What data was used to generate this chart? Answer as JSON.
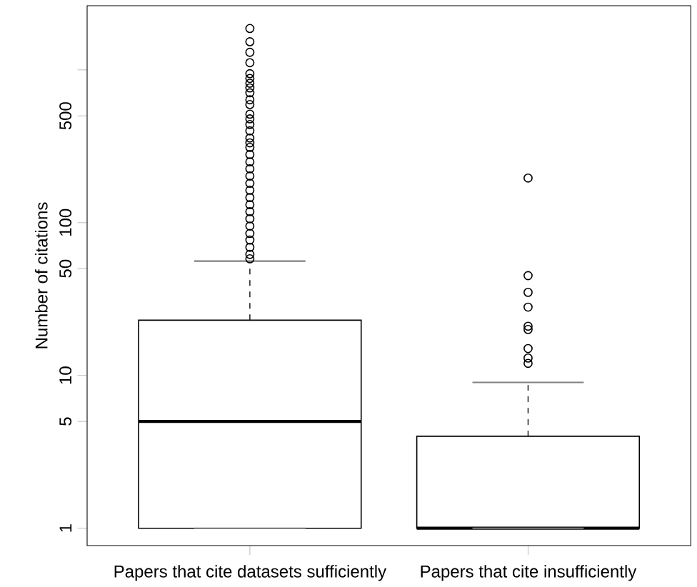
{
  "chart_data": {
    "type": "box",
    "ylabel": "Number of citations",
    "log": true,
    "categories": [
      "Papers that cite datasets sufficiently",
      "Papers that cite insufficiently"
    ],
    "ylim": [
      0.77,
      2630
    ],
    "yticks": [
      1,
      5,
      10,
      50,
      100,
      500,
      {
        "value": 1000,
        "label": null
      }
    ],
    "grid": false,
    "boxes": [
      {
        "low": 1,
        "q1": 1,
        "median": 5,
        "q3": 23,
        "high": 56,
        "outliers": [
          58,
          62,
          69,
          77,
          85,
          95,
          106,
          118,
          131,
          146,
          163,
          181,
          202,
          225,
          250,
          279,
          311,
          333,
          358,
          399,
          439,
          478,
          513,
          593,
          637,
          708,
          762,
          818,
          879,
          944,
          1114,
          1303,
          1528,
          1866
        ]
      },
      {
        "low": 1,
        "q1": 1,
        "median": 1,
        "q3": 4,
        "high": 9,
        "outliers": [
          12,
          13,
          15,
          20,
          21,
          28,
          35,
          45,
          196
        ]
      }
    ]
  }
}
